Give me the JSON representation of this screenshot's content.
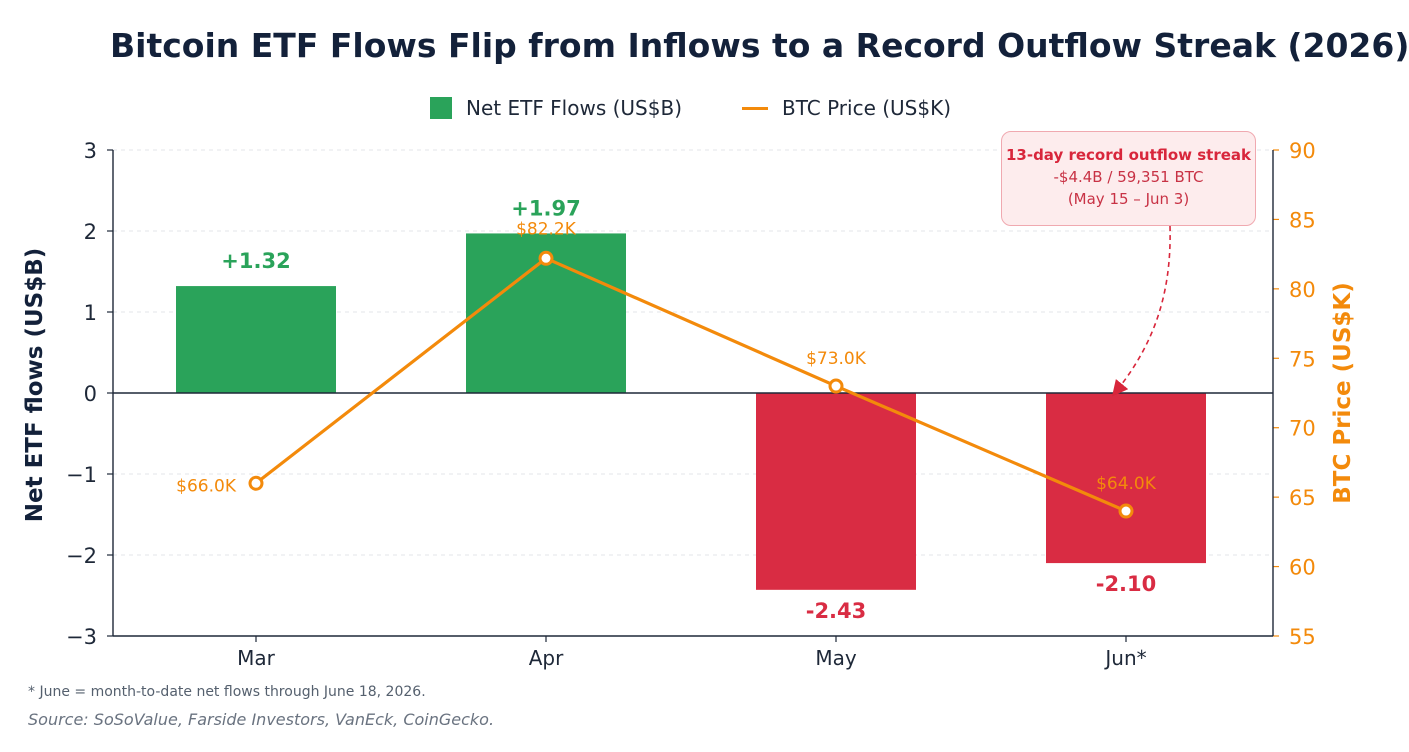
{
  "title": "Bitcoin ETF Flows Flip from Inflows to a Record Outflow Streak (2026)",
  "legend": {
    "bar_label": "Net ETF Flows (US$B)",
    "line_label": "BTC Price (US$K)"
  },
  "colors": {
    "positive": "#2aa35a",
    "negative": "#d92c43",
    "line": "#f38a0b",
    "axis_text": "#1e2838"
  },
  "annotation": {
    "title": "13-day record outflow streak",
    "line1": "-$4.4B / 59,351 BTC",
    "line2": "(May 15 – Jun 3)"
  },
  "footnote": "* June = month-to-date net flows through June 18, 2026.",
  "source": "Source: SoSoValue, Farside Investors, VanEck, CoinGecko.",
  "chart_data": {
    "type": "bar",
    "categories": [
      "Mar",
      "Apr",
      "May",
      "Jun*"
    ],
    "series": [
      {
        "name": "Net ETF Flows (US$B)",
        "type": "bar",
        "axis": "left",
        "values": [
          1.32,
          1.97,
          -2.43,
          -2.1
        ],
        "labels": [
          "+1.32",
          "+1.97",
          "-2.43",
          "-2.10"
        ]
      },
      {
        "name": "BTC Price (US$K)",
        "type": "line",
        "axis": "right",
        "values": [
          66.0,
          82.2,
          73.0,
          64.0
        ],
        "labels": [
          "$66.0K",
          "$82.2K",
          "$73.0K",
          "$64.0K"
        ]
      }
    ],
    "ylabel": "Net ETF flows (US$B)",
    "y2label": "BTC Price (US$K)",
    "ylim": [
      -3,
      3
    ],
    "y2lim": [
      55,
      90
    ],
    "yticks": [
      "3",
      "2",
      "1",
      "0",
      "−1",
      "−2",
      "−3"
    ],
    "y2ticks": [
      "90",
      "85",
      "80",
      "75",
      "70",
      "65",
      "60",
      "55"
    ],
    "grid": true,
    "legend_position": "top"
  }
}
